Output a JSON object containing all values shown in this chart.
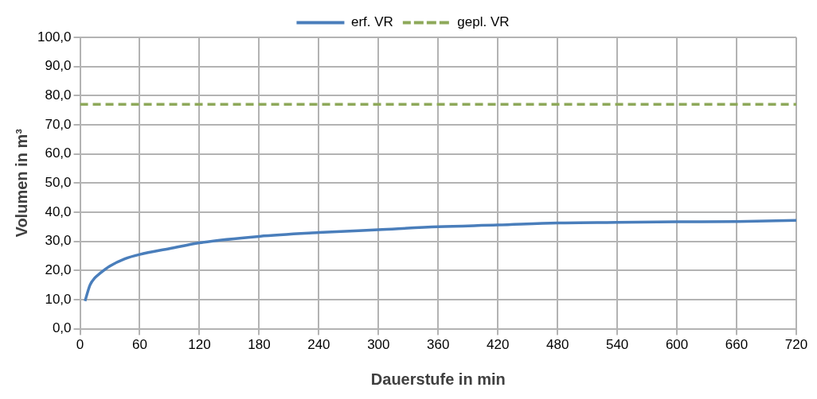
{
  "chart_data": {
    "type": "line",
    "xlabel": "Dauerstufe in min",
    "ylabel": "Volumen in m³",
    "xlim": [
      0,
      720
    ],
    "xticks": [
      0,
      60,
      120,
      180,
      240,
      300,
      360,
      420,
      480,
      540,
      600,
      660,
      720
    ],
    "ylim": [
      0,
      100
    ],
    "yticks": [
      {
        "value": 0,
        "label": "0,0"
      },
      {
        "value": 10,
        "label": "10,0"
      },
      {
        "value": 20,
        "label": "20,0"
      },
      {
        "value": 30,
        "label": "30,0"
      },
      {
        "value": 40,
        "label": "40,0"
      },
      {
        "value": 50,
        "label": "50,0"
      },
      {
        "value": 60,
        "label": "60,0"
      },
      {
        "value": 70,
        "label": "70,0"
      },
      {
        "value": 80,
        "label": "80,0"
      },
      {
        "value": 90,
        "label": "90,0"
      },
      {
        "value": 100,
        "label": "100,0"
      }
    ],
    "grid": true,
    "legend": "top",
    "marker": "none",
    "series": [
      {
        "name": "erf. VR",
        "color": "#4a7ebb",
        "line_style": "solid",
        "x": [
          5,
          10,
          15,
          20,
          30,
          45,
          60,
          90,
          120,
          180,
          240,
          300,
          360,
          420,
          480,
          540,
          600,
          660,
          720
        ],
        "values": [
          9.5,
          15,
          17.5,
          19,
          21.5,
          24,
          25.5,
          27.5,
          29.5,
          31.7,
          33,
          34,
          35,
          35.6,
          36.3,
          36.5,
          36.7,
          36.8,
          37.2
        ]
      },
      {
        "name": "gepl. VR",
        "color": "#8ea95a",
        "line_style": "dashed",
        "x": [
          0,
          720
        ],
        "values": [
          77,
          77
        ]
      }
    ]
  }
}
